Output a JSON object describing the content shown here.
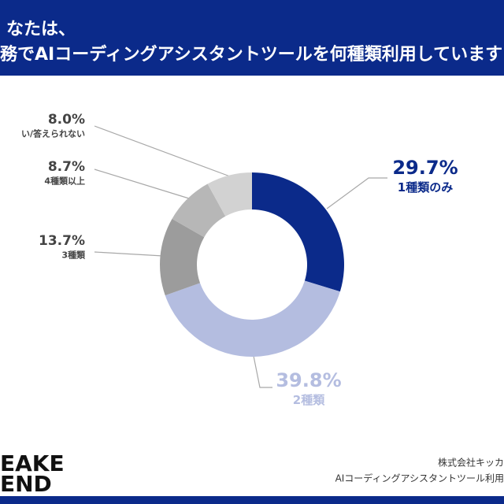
{
  "chart_data": {
    "type": "pie",
    "title": [
      "なたは、",
      "務でAIコーディングアシスタントツールを何種類利用しています"
    ],
    "categories": [
      "1種類のみ",
      "2種類",
      "3種類",
      "4種類以上",
      "い/答えられない"
    ],
    "values": [
      29.7,
      39.8,
      13.7,
      8.7,
      8.0
    ],
    "value_labels": [
      "29.7%",
      "39.8%",
      "13.7%",
      "8.7%",
      "8.0%"
    ],
    "colors": [
      "#0b2a8a",
      "#b4bde0",
      "#9c9c9c",
      "#b7b7b7",
      "#d2d2d2"
    ]
  },
  "footer": {
    "logo": [
      "EAKE",
      "END"
    ],
    "source": [
      "株式会社キッカ",
      "AIコーディングアシスタントツール利用"
    ]
  }
}
